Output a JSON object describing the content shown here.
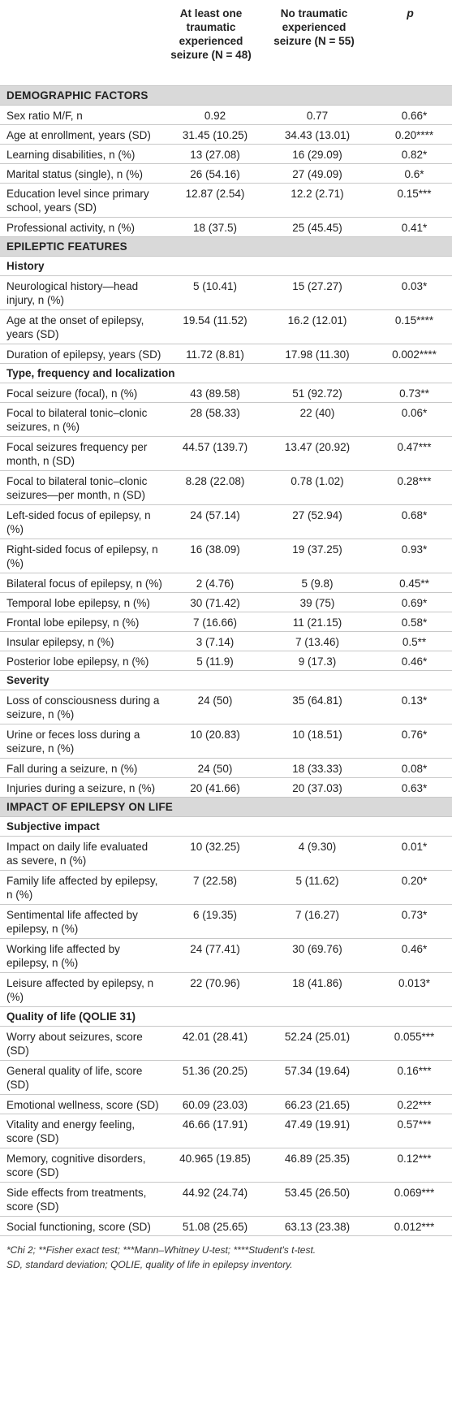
{
  "header": {
    "col1_line1": "At least one",
    "col1_line2": "traumatic",
    "col1_line3": "experienced",
    "col1_line4": "seizure (N = 48)",
    "col2_line1": "No traumatic",
    "col2_line2": "experienced",
    "col2_line3": "seizure (N = 55)",
    "col3": "p"
  },
  "rows": [
    {
      "type": "section",
      "label": "DEMOGRAPHIC FACTORS"
    },
    {
      "type": "data",
      "label": "Sex ratio M/F, n",
      "v1": "0.92",
      "v2": "0.77",
      "v3": "0.66*",
      "h": 24
    },
    {
      "type": "data",
      "label": "Age at enrollment, years (SD)",
      "v1": "31.45 (10.25)",
      "v2": "34.43 (13.01)",
      "v3": "0.20****",
      "h": 24
    },
    {
      "type": "data",
      "label": "Learning disabilities, n (%)",
      "v1": "13 (27.08)",
      "v2": "16 (29.09)",
      "v3": "0.82*",
      "h": 24
    },
    {
      "type": "data",
      "label": "Marital status (single), n (%)",
      "v1": "26 (54.16)",
      "v2": "27 (49.09)",
      "v3": "0.6*",
      "h": 24
    },
    {
      "type": "data",
      "label": "Education level since primary school, years (SD)",
      "v1": "12.87 (2.54)",
      "v2": "12.2 (2.71)",
      "v3": "0.15***",
      "h": 41
    },
    {
      "type": "data",
      "label": "Professional activity, n (%)",
      "v1": "18 (37.5)",
      "v2": "25 (45.45)",
      "v3": "0.41*",
      "h": 24
    },
    {
      "type": "section",
      "label": "EPILEPTIC FEATURES"
    },
    {
      "type": "subsection",
      "label": "History"
    },
    {
      "type": "data",
      "label": "Neurological history—head injury, n (%)",
      "v1": "5 (10.41)",
      "v2": "15 (27.27)",
      "v3": "0.03*",
      "h": 41
    },
    {
      "type": "data",
      "label": "Age at the onset of epilepsy, years (SD)",
      "v1": "19.54 (11.52)",
      "v2": "16.2 (12.01)",
      "v3": "0.15****",
      "h": 41
    },
    {
      "type": "data",
      "label": "Duration of epilepsy, years (SD)",
      "v1": "11.72 (8.81)",
      "v2": "17.98 (11.30)",
      "v3": "0.002****",
      "h": 24
    },
    {
      "type": "subsection",
      "label": "Type, frequency and localization"
    },
    {
      "type": "data",
      "label": "Focal seizure (focal), n (%)",
      "v1": "43 (89.58)",
      "v2": "51 (92.72)",
      "v3": "0.73**",
      "h": 24
    },
    {
      "type": "data",
      "label": "Focal to bilateral tonic–clonic seizures, n (%)",
      "v1": "28 (58.33)",
      "v2": "22 (40)",
      "v3": "0.06*",
      "h": 41
    },
    {
      "type": "data",
      "label": "Focal seizures frequency per month, n (SD)",
      "v1": "44.57 (139.7)",
      "v2": "13.47 (20.92)",
      "v3": "0.47***",
      "h": 41
    },
    {
      "type": "data",
      "label": "Focal to bilateral tonic–clonic seizures—per month, n (SD)",
      "v1": "8.28 (22.08)",
      "v2": "0.78 (1.02)",
      "v3": "0.28***",
      "h": 41
    },
    {
      "type": "data",
      "label": "Left-sided focus of epilepsy, n (%)",
      "v1": "24 (57.14)",
      "v2": "27 (52.94)",
      "v3": "0.68*",
      "h": 41
    },
    {
      "type": "data",
      "label": "Right-sided focus of epilepsy, n (%)",
      "v1": "16 (38.09)",
      "v2": "19 (37.25)",
      "v3": "0.93*",
      "h": 41
    },
    {
      "type": "data",
      "label": "Bilateral focus of epilepsy, n (%)",
      "v1": "2 (4.76)",
      "v2": "5 (9.8)",
      "v3": "0.45**",
      "h": 24
    },
    {
      "type": "data",
      "label": "Temporal lobe epilepsy, n (%)",
      "v1": "30 (71.42)",
      "v2": "39 (75)",
      "v3": "0.69*",
      "h": 24
    },
    {
      "type": "data",
      "label": "Frontal lobe epilepsy, n (%)",
      "v1": "7 (16.66)",
      "v2": "11 (21.15)",
      "v3": "0.58*",
      "h": 24
    },
    {
      "type": "data",
      "label": "Insular epilepsy, n (%)",
      "v1": "3 (7.14)",
      "v2": "7 (13.46)",
      "v3": "0.5**",
      "h": 24
    },
    {
      "type": "data",
      "label": "Posterior lobe epilepsy, n (%)",
      "v1": "5 (11.9)",
      "v2": "9 (17.3)",
      "v3": "0.46*",
      "h": 24
    },
    {
      "type": "subsection",
      "label": "Severity"
    },
    {
      "type": "data",
      "label": "Loss of consciousness during a seizure, n (%)",
      "v1": "24 (50)",
      "v2": "35 (64.81)",
      "v3": "0.13*",
      "h": 41
    },
    {
      "type": "data",
      "label": "Urine or feces loss during a seizure, n (%)",
      "v1": "10 (20.83)",
      "v2": "10 (18.51)",
      "v3": "0.76*",
      "h": 41
    },
    {
      "type": "data",
      "label": "Fall during a seizure, n (%)",
      "v1": "24 (50)",
      "v2": "18 (33.33)",
      "v3": "0.08*",
      "h": 24
    },
    {
      "type": "data",
      "label": "Injuries during a seizure, n (%)",
      "v1": "20 (41.66)",
      "v2": "20 (37.03)",
      "v3": "0.63*",
      "h": 24
    },
    {
      "type": "section",
      "label": "IMPACT OF EPILEPSY ON LIFE"
    },
    {
      "type": "subsection",
      "label": "Subjective impact"
    },
    {
      "type": "data",
      "label": "Impact on daily life evaluated as severe, n (%)",
      "v1": "10 (32.25)",
      "v2": "4 (9.30)",
      "v3": "0.01*",
      "h": 41
    },
    {
      "type": "data",
      "label": "Family life affected by epilepsy, n (%)",
      "v1": "7 (22.58)",
      "v2": "5 (11.62)",
      "v3": "0.20*",
      "h": 41
    },
    {
      "type": "data",
      "label": "Sentimental life affected by epilepsy, n (%)",
      "v1": "6 (19.35)",
      "v2": "7 (16.27)",
      "v3": "0.73*",
      "h": 41
    },
    {
      "type": "data",
      "label": "Working life affected by epilepsy, n (%)",
      "v1": "24 (77.41)",
      "v2": "30 (69.76)",
      "v3": "0.46*",
      "h": 41
    },
    {
      "type": "data",
      "label": "Leisure affected by epilepsy, n (%)",
      "v1": "22 (70.96)",
      "v2": "18 (41.86)",
      "v3": "0.013*",
      "h": 41
    },
    {
      "type": "subsection",
      "label": "Quality of life (QOLIE 31)"
    },
    {
      "type": "data",
      "label": "Worry about seizures, score (SD)",
      "v1": "42.01 (28.41)",
      "v2": "52.24 (25.01)",
      "v3": "0.055***",
      "h": 41
    },
    {
      "type": "data",
      "label": "General quality of life, score (SD)",
      "v1": "51.36 (20.25)",
      "v2": "57.34 (19.64)",
      "v3": "0.16***",
      "h": 41
    },
    {
      "type": "data",
      "label": "Emotional wellness, score (SD)",
      "v1": "60.09 (23.03)",
      "v2": "66.23 (21.65)",
      "v3": "0.22***",
      "h": 24
    },
    {
      "type": "data",
      "label": "Vitality and energy feeling, score (SD)",
      "v1": "46.66 (17.91)",
      "v2": "47.49 (19.91)",
      "v3": "0.57***",
      "h": 41
    },
    {
      "type": "data",
      "label": "Memory, cognitive disorders, score (SD)",
      "v1": "40.965 (19.85)",
      "v2": "46.89 (25.35)",
      "v3": "0.12***",
      "h": 41
    },
    {
      "type": "data",
      "label": "Side effects from treatments, score (SD)",
      "v1": "44.92 (24.74)",
      "v2": "53.45 (26.50)",
      "v3": "0.069***",
      "h": 41
    },
    {
      "type": "data",
      "label": "Social functioning, score (SD)",
      "v1": "51.08 (25.65)",
      "v2": "63.13 (23.38)",
      "v3": "0.012***",
      "h": 24
    }
  ],
  "footnote": {
    "line1": "*Chi 2; **Fisher exact test; ***Mann–Whitney U-test; ****Student's t-test.",
    "line2": "SD, standard deviation; QOLIE, quality of life in epilepsy inventory."
  }
}
